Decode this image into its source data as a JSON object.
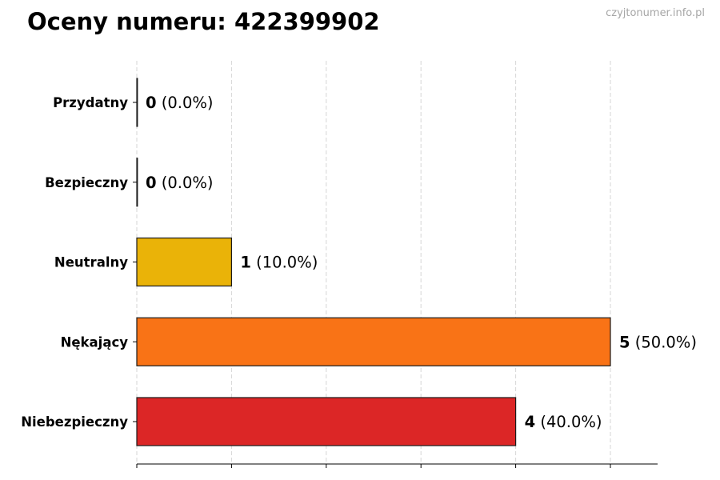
{
  "watermark": "czyjtonumer.info.pl",
  "chart_data": {
    "type": "bar",
    "orientation": "horizontal",
    "title": "Oceny numeru: 422399902",
    "categories": [
      "Przydatny",
      "Bezpieczny",
      "Neutralny",
      "Nękający",
      "Niebezpieczny"
    ],
    "values": [
      0,
      0,
      1,
      5,
      4
    ],
    "percent_labels": [
      "(0.0%)",
      "(0.0%)",
      "(10.0%)",
      "(50.0%)",
      "(40.0%)"
    ],
    "colors": [
      "#2e8b57",
      "#3cb371",
      "#eab308",
      "#f97316",
      "#dc2626"
    ],
    "xlim": [
      0,
      5.5
    ],
    "grid": true,
    "xlabel": "",
    "ylabel": ""
  }
}
